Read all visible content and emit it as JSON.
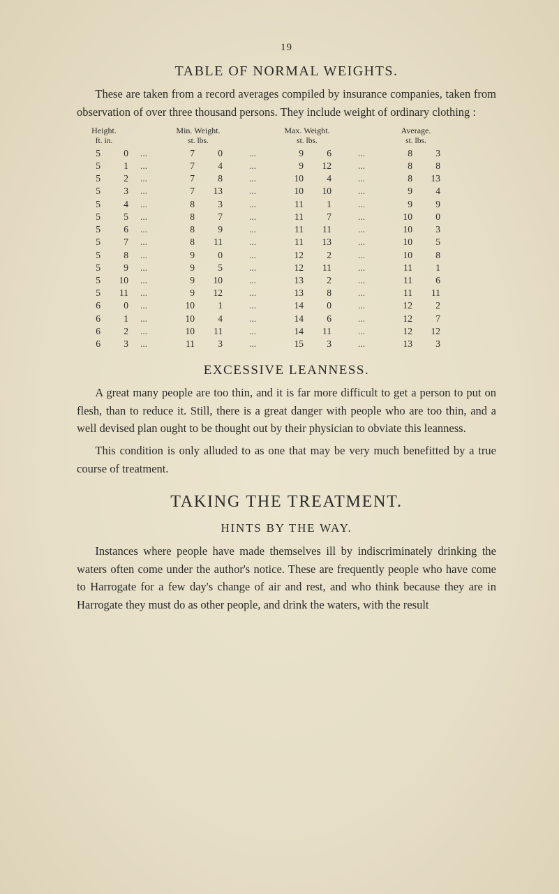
{
  "page_number": "19",
  "table_title": "TABLE OF NORMAL WEIGHTS.",
  "intro_para": "These are taken from a record averages compiled by insurance companies, taken from observation of over three thousand persons.  They include weight of ordinary clothing :",
  "weight_table": {
    "head": {
      "h": "Height.",
      "mn": "Min. Weight.",
      "mx": "Max. Weight.",
      "av": "Average."
    },
    "sub": {
      "h": "ft.   in.",
      "mn": "st.   lbs.",
      "mx": "st.   lbs.",
      "av": "st.   lbs."
    },
    "sep": "...",
    "rows": [
      {
        "h": [
          "5",
          "0"
        ],
        "mn": [
          "7",
          "0"
        ],
        "mx": [
          "9",
          "6"
        ],
        "av": [
          "8",
          "3"
        ]
      },
      {
        "h": [
          "5",
          "1"
        ],
        "mn": [
          "7",
          "4"
        ],
        "mx": [
          "9",
          "12"
        ],
        "av": [
          "8",
          "8"
        ]
      },
      {
        "h": [
          "5",
          "2"
        ],
        "mn": [
          "7",
          "8"
        ],
        "mx": [
          "10",
          "4"
        ],
        "av": [
          "8",
          "13"
        ]
      },
      {
        "h": [
          "5",
          "3"
        ],
        "mn": [
          "7",
          "13"
        ],
        "mx": [
          "10",
          "10"
        ],
        "av": [
          "9",
          "4"
        ]
      },
      {
        "h": [
          "5",
          "4"
        ],
        "mn": [
          "8",
          "3"
        ],
        "mx": [
          "11",
          "1"
        ],
        "av": [
          "9",
          "9"
        ]
      },
      {
        "h": [
          "5",
          "5"
        ],
        "mn": [
          "8",
          "7"
        ],
        "mx": [
          "11",
          "7"
        ],
        "av": [
          "10",
          "0"
        ]
      },
      {
        "h": [
          "5",
          "6"
        ],
        "mn": [
          "8",
          "9"
        ],
        "mx": [
          "11",
          "11"
        ],
        "av": [
          "10",
          "3"
        ]
      },
      {
        "h": [
          "5",
          "7"
        ],
        "mn": [
          "8",
          "11"
        ],
        "mx": [
          "11",
          "13"
        ],
        "av": [
          "10",
          "5"
        ]
      },
      {
        "h": [
          "5",
          "8"
        ],
        "mn": [
          "9",
          "0"
        ],
        "mx": [
          "12",
          "2"
        ],
        "av": [
          "10",
          "8"
        ]
      },
      {
        "h": [
          "5",
          "9"
        ],
        "mn": [
          "9",
          "5"
        ],
        "mx": [
          "12",
          "11"
        ],
        "av": [
          "11",
          "1"
        ]
      },
      {
        "h": [
          "5",
          "10"
        ],
        "mn": [
          "9",
          "10"
        ],
        "mx": [
          "13",
          "2"
        ],
        "av": [
          "11",
          "6"
        ]
      },
      {
        "h": [
          "5",
          "11"
        ],
        "mn": [
          "9",
          "12"
        ],
        "mx": [
          "13",
          "8"
        ],
        "av": [
          "11",
          "11"
        ]
      },
      {
        "h": [
          "6",
          "0"
        ],
        "mn": [
          "10",
          "1"
        ],
        "mx": [
          "14",
          "0"
        ],
        "av": [
          "12",
          "2"
        ]
      },
      {
        "h": [
          "6",
          "1"
        ],
        "mn": [
          "10",
          "4"
        ],
        "mx": [
          "14",
          "6"
        ],
        "av": [
          "12",
          "7"
        ]
      },
      {
        "h": [
          "6",
          "2"
        ],
        "mn": [
          "10",
          "11"
        ],
        "mx": [
          "14",
          "11"
        ],
        "av": [
          "12",
          "12"
        ]
      },
      {
        "h": [
          "6",
          "3"
        ],
        "mn": [
          "11",
          "3"
        ],
        "mx": [
          "15",
          "3"
        ],
        "av": [
          "13",
          "3"
        ]
      }
    ],
    "fontsize": 13.5,
    "text_color": "#2a2a28"
  },
  "leanness_title": "EXCESSIVE LEANNESS.",
  "leanness_p1": "A great many people are too thin, and it is far more difficult to get a person to put on flesh, than to reduce it. Still, there is a great danger with people who are too thin, and a well devised plan ought to be thought out by their physician to obviate this leanness.",
  "leanness_p2": "This condition is only alluded to as one that may be very much benefitted by a true course of treatment.",
  "treatment_title": "TAKING  THE  TREATMENT.",
  "hints_title": "HINTS  BY  THE  WAY.",
  "hints_p1": "Instances where people have made themselves ill by indiscriminately drinking the waters often come under the author's notice.  These are frequently people who have come to Harrogate for a few day's change of air and rest, and who think because they are in Harrogate they must do as other people, and drink the waters, with the result",
  "colors": {
    "bg": "#e8e0c8",
    "text": "#2a2a28"
  }
}
